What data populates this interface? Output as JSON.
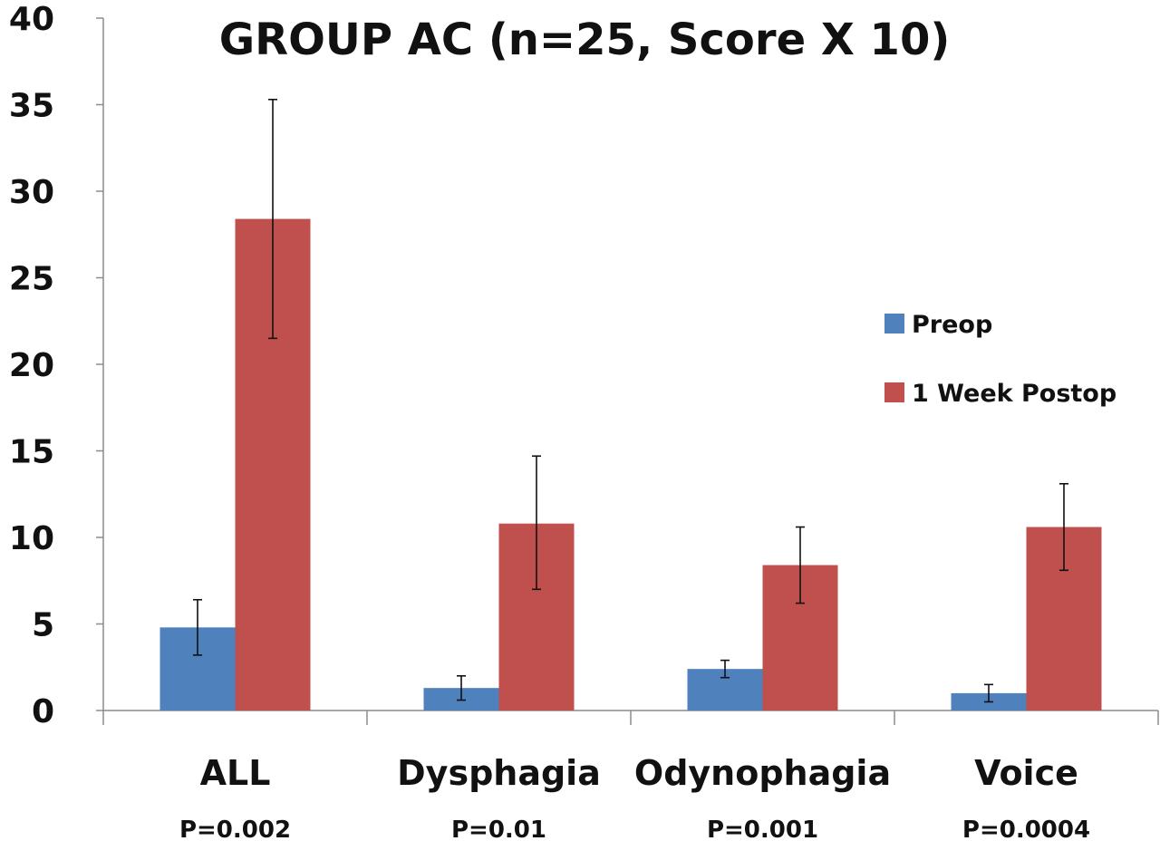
{
  "chart_data": {
    "type": "bar",
    "title": "GROUP AC (n=25, Score X 10)",
    "xlabel": "",
    "ylabel": "",
    "ylim": [
      0,
      40
    ],
    "yticks": [
      "0",
      "5",
      "10",
      "15",
      "20",
      "25",
      "30",
      "35",
      "40"
    ],
    "categories": [
      "ALL",
      "Dysphagia",
      "Odynophagia",
      "Voice"
    ],
    "annotations": [
      "P=0.002",
      "P=0.01",
      "P=0.001",
      "P=0.0004"
    ],
    "grid": false,
    "legend_position": "right",
    "series": [
      {
        "name": "Preop",
        "color": "#4F81BD",
        "values": [
          4.8,
          1.3,
          2.4,
          1.0
        ],
        "error_low": [
          3.2,
          0.6,
          1.9,
          0.5
        ],
        "error_high": [
          6.4,
          2.0,
          2.9,
          1.5
        ]
      },
      {
        "name": "1 Week Postop",
        "color": "#C0504D",
        "values": [
          28.4,
          10.8,
          8.4,
          10.6
        ],
        "error_low": [
          21.5,
          7.0,
          6.2,
          8.1
        ],
        "error_high": [
          35.3,
          14.7,
          10.6,
          13.1
        ]
      }
    ]
  }
}
